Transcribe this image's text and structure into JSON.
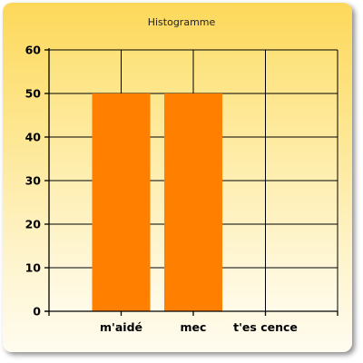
{
  "chart_data": {
    "type": "bar",
    "title": "Histogramme",
    "categories": [
      "m'aidé",
      "mec",
      "t'es cence"
    ],
    "values": [
      50,
      50,
      0
    ],
    "ylim": [
      0,
      60
    ],
    "yticks": [
      0,
      10,
      20,
      30,
      40,
      50,
      60
    ],
    "xlabel": "",
    "ylabel": "",
    "grid": true,
    "bar_color": "#ff8000",
    "plot_background_gradient": [
      "#fde27a",
      "#fffbea"
    ]
  }
}
